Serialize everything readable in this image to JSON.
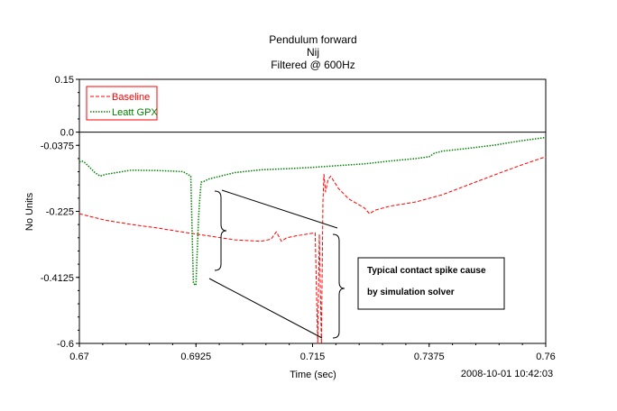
{
  "chart_data": {
    "type": "line",
    "title_lines": [
      "Pendulum forward",
      "Nij",
      "Filtered @ 600Hz"
    ],
    "xlabel": "Time (sec)",
    "ylabel": "No Units",
    "xlim": [
      0.67,
      0.76
    ],
    "ylim": [
      -0.6,
      0.15
    ],
    "x_ticks": [
      0.67,
      0.6925,
      0.715,
      0.7375,
      0.76
    ],
    "x_tick_labels": [
      "0.67",
      "0.6925",
      "0.715",
      "0.7375",
      "0.76"
    ],
    "y_ticks": [
      0.15,
      0.0,
      -0.0375,
      -0.225,
      -0.4125,
      -0.6
    ],
    "y_tick_labels": [
      "0.15",
      "0.0",
      "-0.0375",
      "-0.225",
      "-0.4125",
      "-0.6"
    ],
    "zero_line": true,
    "legend_position": "top-left",
    "annotation": {
      "line1": "Typical contact spike cause",
      "line2": "by simulation solver"
    },
    "timestamp": "2008-10-01 10:42:03",
    "series": [
      {
        "name": "Baseline",
        "color": "#ff0000",
        "dash": "dashed",
        "x": [
          0.67,
          0.675,
          0.68,
          0.685,
          0.69,
          0.695,
          0.7,
          0.705,
          0.707,
          0.708,
          0.709,
          0.71,
          0.712,
          0.7155,
          0.716,
          0.7163,
          0.7167,
          0.717,
          0.7172,
          0.7175,
          0.718,
          0.7185,
          0.72,
          0.722,
          0.725,
          0.726,
          0.727,
          0.73,
          0.735,
          0.74,
          0.745,
          0.75,
          0.755,
          0.76
        ],
        "y": [
          -0.232,
          -0.25,
          -0.262,
          -0.272,
          -0.284,
          -0.295,
          -0.306,
          -0.31,
          -0.304,
          -0.283,
          -0.31,
          -0.3,
          -0.294,
          -0.286,
          -0.6,
          -0.29,
          -0.6,
          -0.2,
          -0.12,
          -0.17,
          -0.135,
          -0.125,
          -0.16,
          -0.19,
          -0.215,
          -0.232,
          -0.222,
          -0.21,
          -0.198,
          -0.178,
          -0.15,
          -0.122,
          -0.095,
          -0.07
        ]
      },
      {
        "name": "Leatt GPX",
        "color": "#008000",
        "dash": "dotted",
        "x": [
          0.67,
          0.6705,
          0.671,
          0.672,
          0.673,
          0.674,
          0.675,
          0.678,
          0.68,
          0.685,
          0.69,
          0.6915,
          0.692,
          0.6925,
          0.693,
          0.6932,
          0.6935,
          0.694,
          0.695,
          0.7,
          0.705,
          0.71,
          0.715,
          0.72,
          0.725,
          0.73,
          0.735,
          0.7375,
          0.7385,
          0.74,
          0.745,
          0.75,
          0.755,
          0.76
        ],
        "y": [
          -0.085,
          -0.082,
          -0.086,
          -0.1,
          -0.115,
          -0.125,
          -0.12,
          -0.113,
          -0.108,
          -0.109,
          -0.112,
          -0.125,
          -0.43,
          -0.435,
          -0.245,
          -0.195,
          -0.142,
          -0.14,
          -0.133,
          -0.115,
          -0.107,
          -0.104,
          -0.1,
          -0.095,
          -0.09,
          -0.082,
          -0.075,
          -0.07,
          -0.06,
          -0.054,
          -0.046,
          -0.037,
          -0.025,
          -0.015
        ]
      }
    ]
  }
}
